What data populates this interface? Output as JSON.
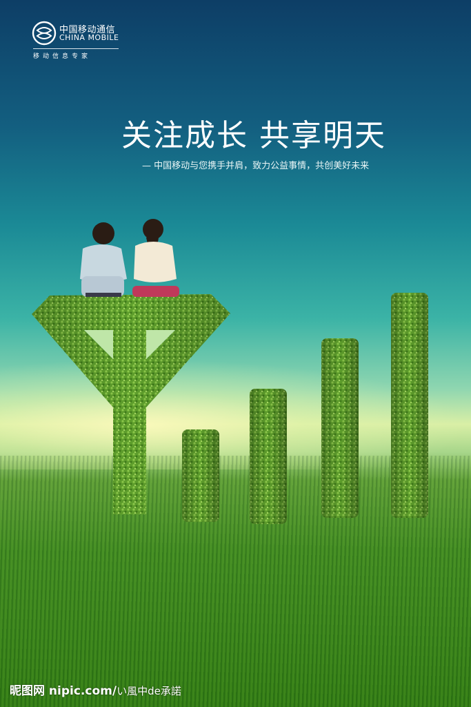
{
  "brand": {
    "name_cn": "中国移动通信",
    "name_en": "CHINA MOBILE",
    "tagline": "移动信息专家"
  },
  "headline": "关注成长  共享明天",
  "subline": "— 中国移动与您携手并肩，致力公益事情，共创美好未来",
  "watermark": {
    "site": "昵图网 nipic.com",
    "separator": "/",
    "user": "い風中de承諾"
  },
  "colors": {
    "sky_top": "#0d3e66",
    "sky_mid": "#1b8a96",
    "horizon": "#d9efa6",
    "grass": "#3f8a22",
    "hedge": "#6aa934"
  },
  "icons": [
    "china-mobile-logo-icon"
  ]
}
